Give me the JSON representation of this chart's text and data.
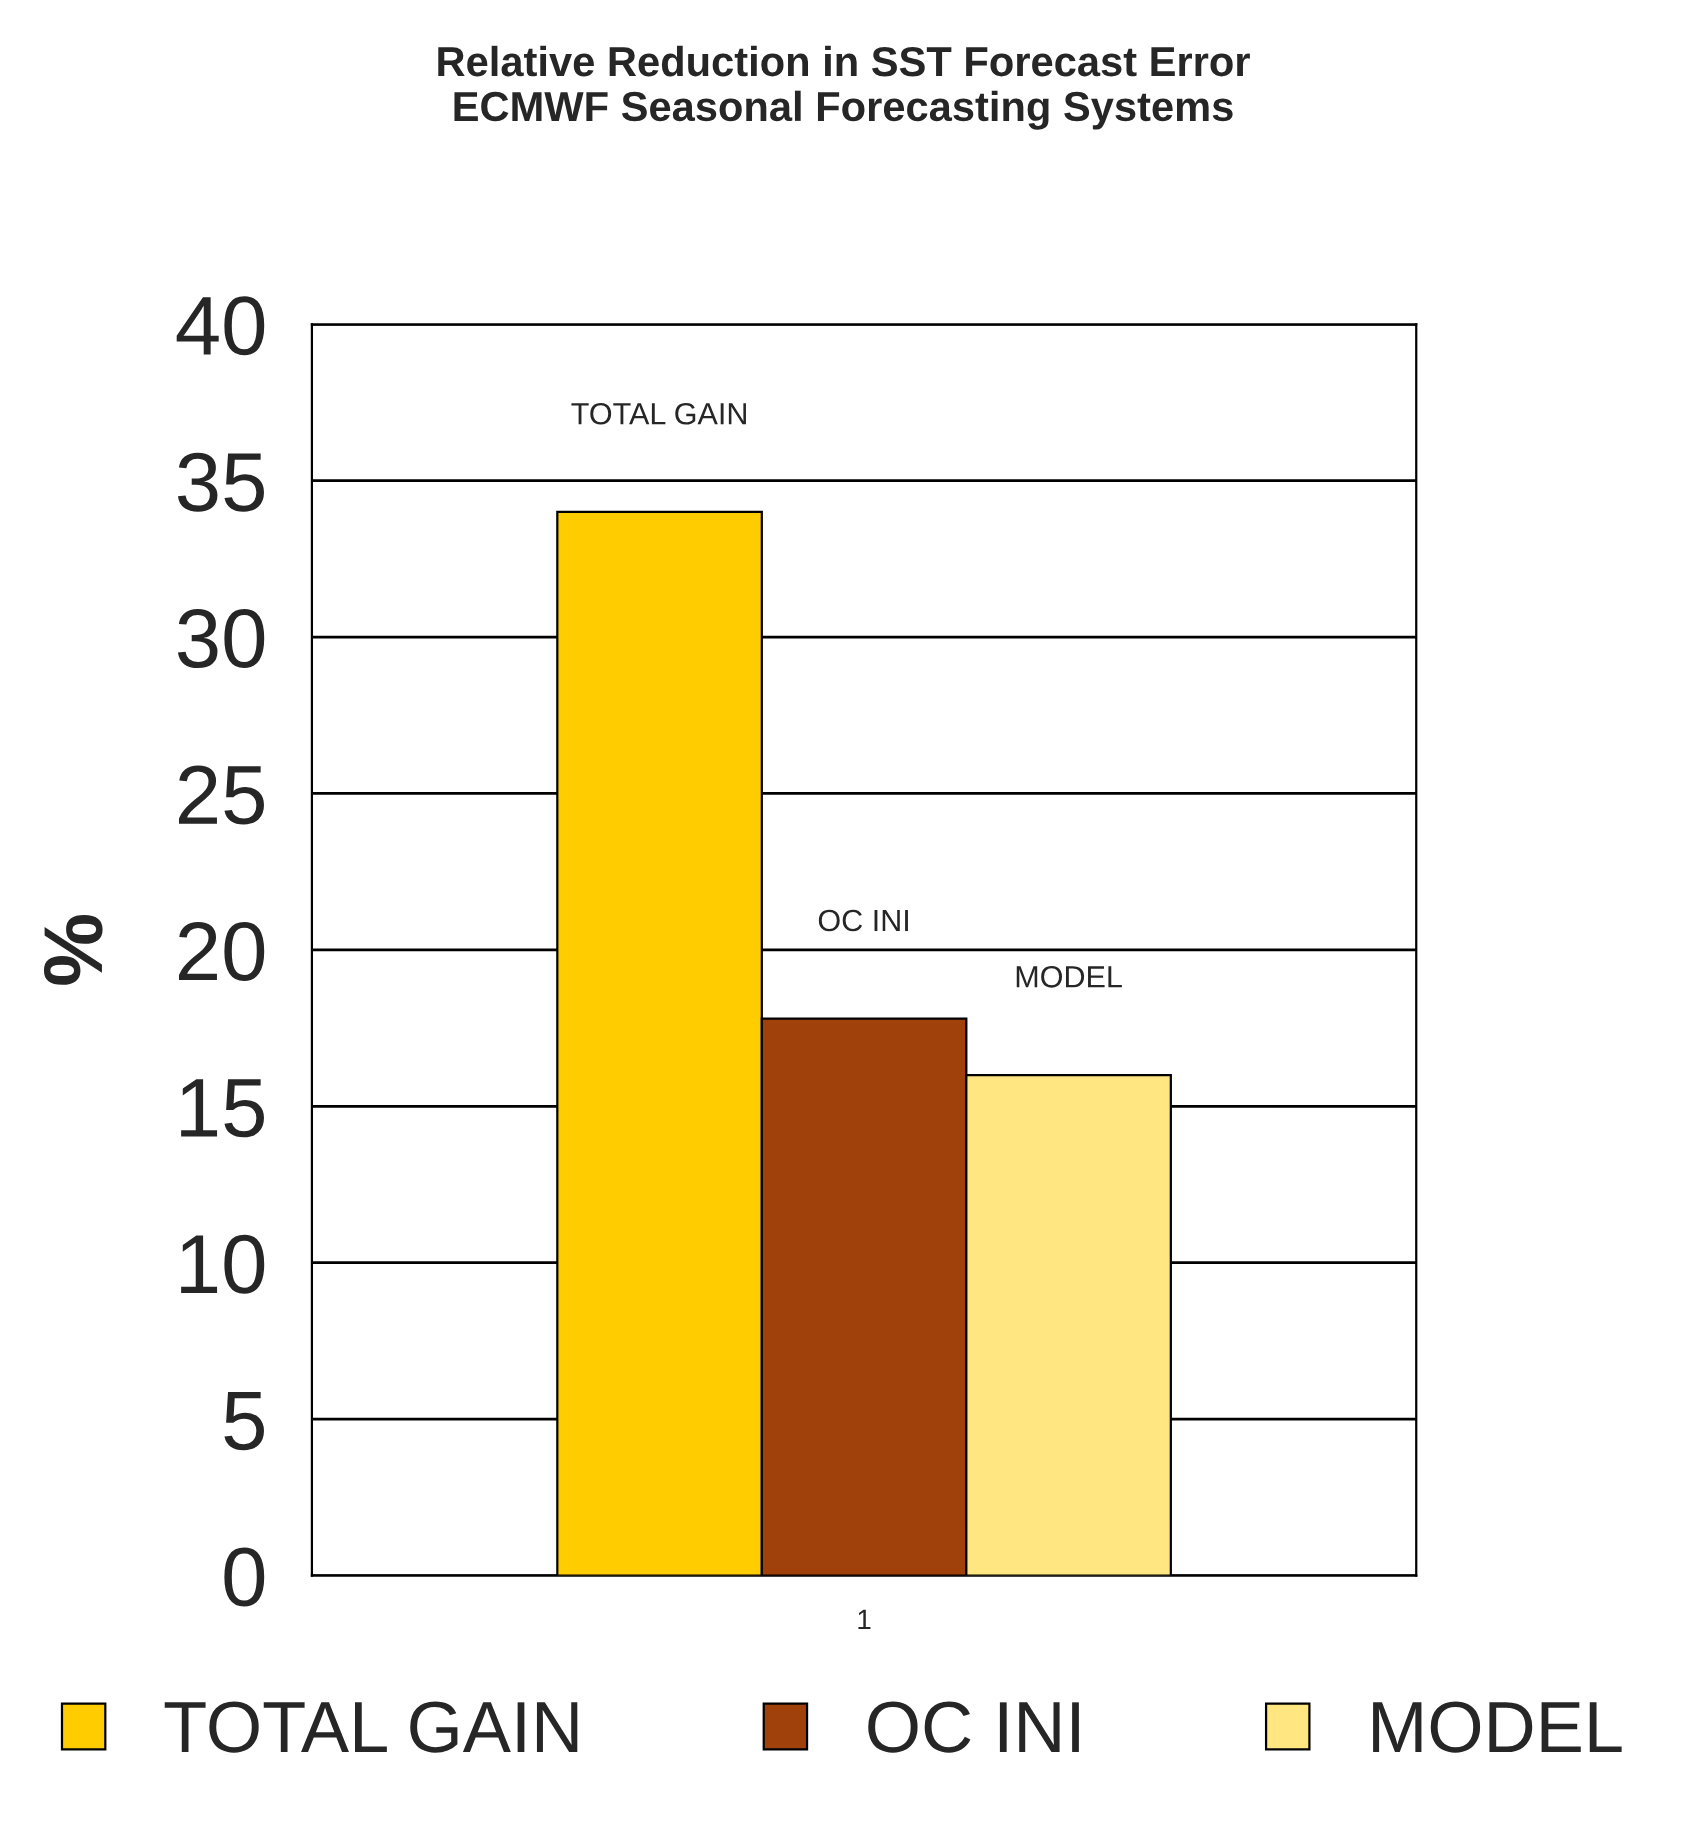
{
  "chart_data": {
    "type": "bar",
    "title": "Relative Reduction in SST Forecast Error\nECMWF Seasonal Forecasting Systems",
    "ylabel": "%",
    "categories": [
      "1"
    ],
    "series": [
      {
        "name": "TOTAL GAIN",
        "color": "#ffcc00",
        "values": [
          34
        ]
      },
      {
        "name": "OC INI",
        "color": "#a0400a",
        "values": [
          17.8
        ]
      },
      {
        "name": "MODEL",
        "color": "#ffe680",
        "values": [
          16
        ]
      }
    ],
    "ylim": [
      0,
      40
    ],
    "yticks": [
      0,
      5,
      10,
      15,
      20,
      25,
      30,
      35,
      40
    ],
    "grid": "y",
    "legend": "bottom"
  }
}
